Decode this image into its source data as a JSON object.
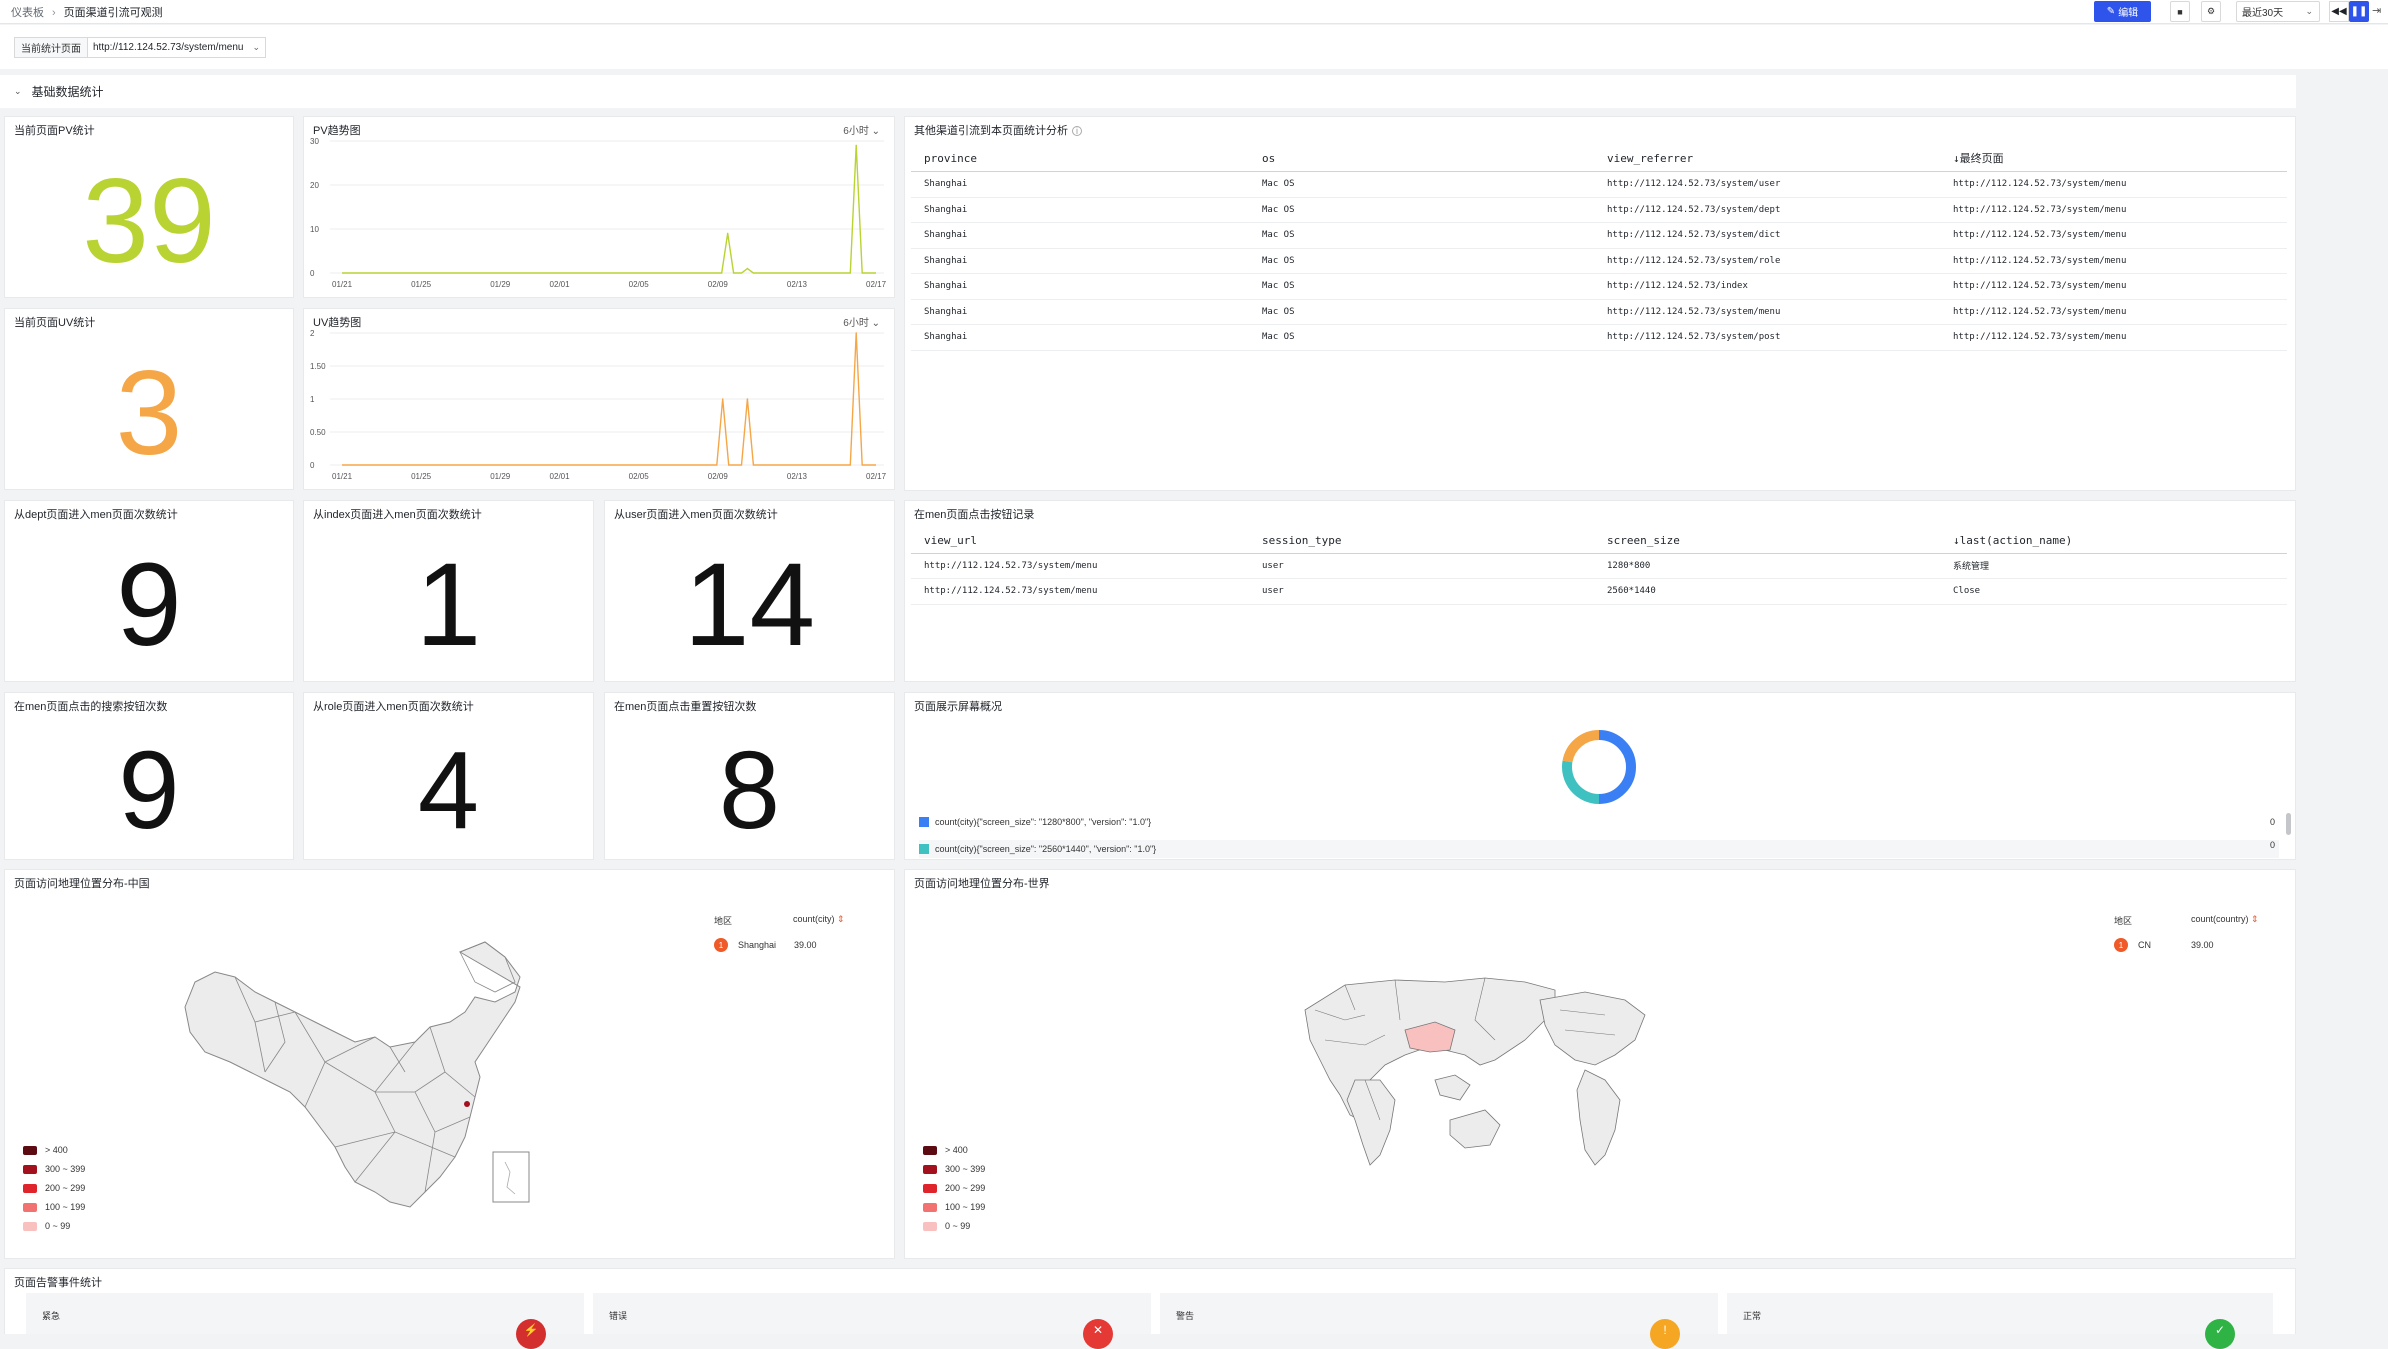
{
  "header": {
    "breadcrumb_root": "仪表板",
    "breadcrumb_current": "页面渠道引流可观测",
    "edit_label": "编辑",
    "time_range": "最近30天"
  },
  "variables": {
    "label": "当前统计页面",
    "value": "http://112.124.52.73/system/menu"
  },
  "row": {
    "title": "基础数据统计"
  },
  "stats": {
    "pv": {
      "title": "当前页面PV统计",
      "value": "39",
      "color": "#b8d332"
    },
    "uv": {
      "title": "当前页面UV统计",
      "value": "3",
      "color": "#f5a647"
    },
    "dept": {
      "title": "从dept页面进入men页面次数统计",
      "value": "9"
    },
    "index": {
      "title": "从index页面进入men页面次数统计",
      "value": "1"
    },
    "user": {
      "title": "从user页面进入men页面次数统计",
      "value": "14"
    },
    "search": {
      "title": "在men页面点击的搜索按钮次数",
      "value": "9"
    },
    "role": {
      "title": "从role页面进入men页面次数统计",
      "value": "4"
    },
    "reset": {
      "title": "在men页面点击重置按钮次数",
      "value": "8"
    }
  },
  "pv_trend": {
    "title": "PV趋势图",
    "interval": "6小时"
  },
  "uv_trend": {
    "title": "UV趋势图",
    "interval": "6小时"
  },
  "chart_data": [
    {
      "type": "line",
      "title": "PV趋势图",
      "color": "#b8d332",
      "x_ticks": [
        "01/21",
        "01/25",
        "01/29",
        "02/01",
        "02/05",
        "02/09",
        "02/13",
        "02/17"
      ],
      "y_ticks": [
        "30",
        "20",
        "10",
        "0"
      ],
      "ylim": [
        0,
        30
      ],
      "points": [
        {
          "x": "02/09 12:00",
          "y": 9
        },
        {
          "x": "02/10 12:00",
          "y": 1
        },
        {
          "x": "02/16 00:00",
          "y": 29
        }
      ]
    },
    {
      "type": "line",
      "title": "UV趋势图",
      "color": "#f5a647",
      "x_ticks": [
        "01/21",
        "01/25",
        "01/29",
        "02/01",
        "02/05",
        "02/09",
        "02/13",
        "02/17"
      ],
      "y_ticks": [
        "2",
        "1.50",
        "1",
        "0.50",
        "0"
      ],
      "ylim": [
        0,
        2
      ],
      "points": [
        {
          "x": "02/09 06:00",
          "y": 1
        },
        {
          "x": "02/10 12:00",
          "y": 1
        },
        {
          "x": "02/16 00:00",
          "y": 2
        }
      ]
    },
    {
      "type": "pie",
      "title": "页面展示屏幕概况",
      "slices": [
        {
          "name": "count(city){\"screen_size\": \"1280*800\", \"version\": \"1.0\"}",
          "value": 0,
          "color": "#3b7ff5"
        },
        {
          "name": "count(city){\"screen_size\": \"2560*1440\", \"version\": \"1.0\"}",
          "value": 0,
          "color": "#3ec1c0"
        }
      ]
    }
  ],
  "referrer_table": {
    "title": "其他渠道引流到本页面统计分析",
    "columns": [
      "province",
      "os",
      "view_referrer",
      "↓最终页面"
    ],
    "rows": [
      [
        "Shanghai",
        "Mac OS",
        "http://112.124.52.73/system/user",
        "http://112.124.52.73/system/menu"
      ],
      [
        "Shanghai",
        "Mac OS",
        "http://112.124.52.73/system/dept",
        "http://112.124.52.73/system/menu"
      ],
      [
        "Shanghai",
        "Mac OS",
        "http://112.124.52.73/system/dict",
        "http://112.124.52.73/system/menu"
      ],
      [
        "Shanghai",
        "Mac OS",
        "http://112.124.52.73/system/role",
        "http://112.124.52.73/system/menu"
      ],
      [
        "Shanghai",
        "Mac OS",
        "http://112.124.52.73/index",
        "http://112.124.52.73/system/menu"
      ],
      [
        "Shanghai",
        "Mac OS",
        "http://112.124.52.73/system/menu",
        "http://112.124.52.73/system/menu"
      ],
      [
        "Shanghai",
        "Mac OS",
        "http://112.124.52.73/system/post",
        "http://112.124.52.73/system/menu"
      ]
    ]
  },
  "click_table": {
    "title": "在men页面点击按钮记录",
    "columns": [
      "view_url",
      "session_type",
      "screen_size",
      "↓last(action_name)"
    ],
    "rows": [
      [
        "http://112.124.52.73/system/menu",
        "user",
        "1280*800",
        "系统管理"
      ],
      [
        "http://112.124.52.73/system/menu",
        "user",
        "2560*1440",
        "Close"
      ]
    ]
  },
  "screen_pie": {
    "title": "页面展示屏幕概况",
    "legend": [
      {
        "label": "count(city){\"screen_size\": \"1280*800\", \"version\": \"1.0\"}",
        "value": "0",
        "color": "#3b7ff5"
      },
      {
        "label": "count(city){\"screen_size\": \"2560*1440\", \"version\": \"1.0\"}",
        "value": "0",
        "color": "#3ec1c0"
      }
    ]
  },
  "geo_china": {
    "title": "页面访问地理位置分布-中国",
    "col_region": "地区",
    "col_value": "count(city)",
    "rows": [
      {
        "rank": "1",
        "region": "Shanghai",
        "value": "39.00"
      }
    ]
  },
  "geo_world": {
    "title": "页面访问地理位置分布-世界",
    "col_region": "地区",
    "col_value": "count(country)",
    "rows": [
      {
        "rank": "1",
        "region": "CN",
        "value": "39.00"
      }
    ]
  },
  "map_legend": [
    {
      "label": "> 400",
      "color": "#5c0b12"
    },
    {
      "label": "300 ~ 399",
      "color": "#a3111f"
    },
    {
      "label": "200 ~ 299",
      "color": "#e0242c"
    },
    {
      "label": "100 ~ 199",
      "color": "#f27272"
    },
    {
      "label": "0 ~ 99",
      "color": "#f9c0c0"
    }
  ],
  "alerts": {
    "title": "页面告警事件统计",
    "cards": [
      {
        "label": "紧急",
        "color": "#d32f2f",
        "icon": "lightning-icon"
      },
      {
        "label": "错误",
        "color": "#e53935",
        "icon": "x-icon"
      },
      {
        "label": "警告",
        "color": "#f5a623",
        "icon": "exclamation-icon"
      },
      {
        "label": "正常",
        "color": "#2fb344",
        "icon": "check-icon"
      }
    ]
  }
}
